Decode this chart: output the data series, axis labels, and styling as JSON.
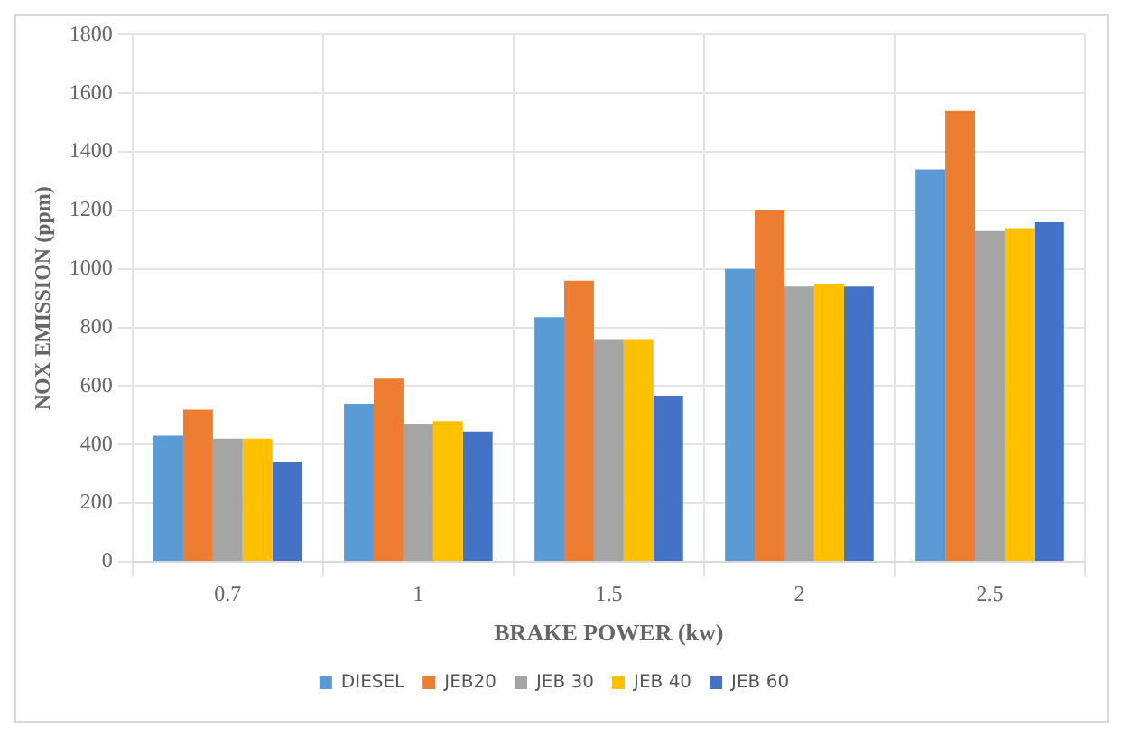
{
  "chart_data": {
    "type": "bar",
    "xlabel": "BRAKE POWER (kw)",
    "ylabel": "NOX EMISSION (ppm)",
    "categories": [
      "0.7",
      "1",
      "1.5",
      "2",
      "2.5"
    ],
    "series": [
      {
        "name": "DIESEL",
        "color": "#5b9bd5",
        "values": [
          430,
          540,
          835,
          1000,
          1340
        ]
      },
      {
        "name": "JEB20",
        "color": "#ed7d31",
        "values": [
          520,
          625,
          960,
          1200,
          1540
        ]
      },
      {
        "name": "JEB 30",
        "color": "#a5a5a5",
        "values": [
          420,
          470,
          760,
          940,
          1130
        ]
      },
      {
        "name": "JEB 40",
        "color": "#ffc000",
        "values": [
          420,
          480,
          760,
          950,
          1140
        ]
      },
      {
        "name": "JEB 60",
        "color": "#4472c4",
        "values": [
          340,
          445,
          565,
          940,
          1160
        ]
      }
    ],
    "ylim": [
      0,
      1800
    ],
    "yticks": [
      0,
      200,
      400,
      600,
      800,
      1000,
      1200,
      1400,
      1600,
      1800
    ],
    "grid": true,
    "legend": "bottom"
  }
}
